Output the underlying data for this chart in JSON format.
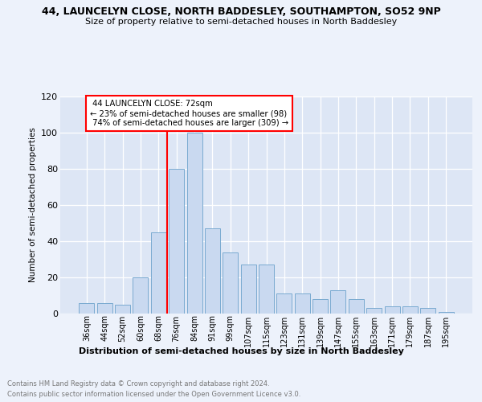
{
  "title1": "44, LAUNCELYN CLOSE, NORTH BADDESLEY, SOUTHAMPTON, SO52 9NP",
  "title2": "Size of property relative to semi-detached houses in North Baddesley",
  "xlabel": "Distribution of semi-detached houses by size in North Baddesley",
  "ylabel": "Number of semi-detached properties",
  "categories": [
    "36sqm",
    "44sqm",
    "52sqm",
    "60sqm",
    "68sqm",
    "76sqm",
    "84sqm",
    "91sqm",
    "99sqm",
    "107sqm",
    "115sqm",
    "123sqm",
    "131sqm",
    "139sqm",
    "147sqm",
    "155sqm",
    "163sqm",
    "171sqm",
    "179sqm",
    "187sqm",
    "195sqm"
  ],
  "values": [
    6,
    6,
    5,
    20,
    45,
    80,
    100,
    47,
    34,
    27,
    27,
    11,
    11,
    8,
    13,
    8,
    3,
    4,
    4,
    3,
    1
  ],
  "bar_color": "#c9d9f0",
  "bar_edge_color": "#7aaad0",
  "property_line_x": 4,
  "pct_smaller": 23,
  "n_smaller": 98,
  "pct_larger": 74,
  "n_larger": 309,
  "annotation_label": "44 LAUNCELYN CLOSE: 72sqm",
  "ylim": [
    0,
    120
  ],
  "yticks": [
    0,
    20,
    40,
    60,
    80,
    100,
    120
  ],
  "footer1": "Contains HM Land Registry data © Crown copyright and database right 2024.",
  "footer2": "Contains public sector information licensed under the Open Government Licence v3.0.",
  "bg_color": "#edf2fb",
  "plot_bg_color": "#dde6f5"
}
